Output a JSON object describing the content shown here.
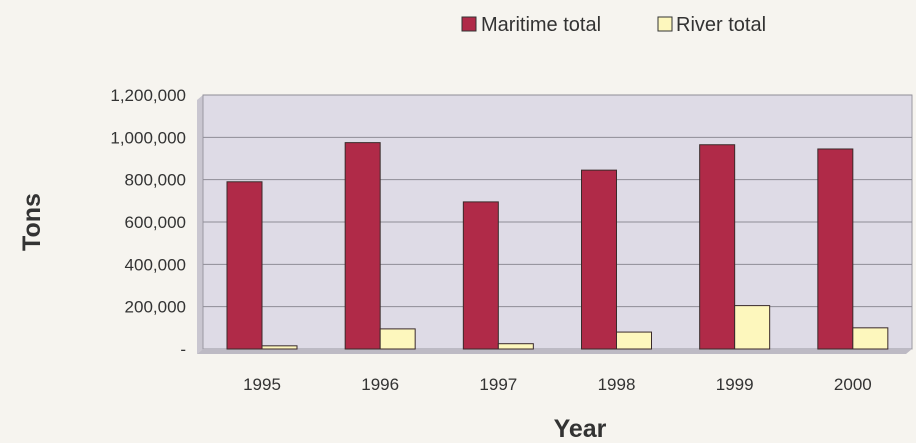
{
  "chart_data": {
    "type": "bar",
    "title": "",
    "xlabel": "Year",
    "ylabel": "Tons",
    "categories": [
      "1995",
      "1996",
      "1997",
      "1998",
      "1999",
      "2000"
    ],
    "series": [
      {
        "name": "Maritime total",
        "color": "#b02a48",
        "values": [
          790000,
          975000,
          695000,
          845000,
          965000,
          945000
        ]
      },
      {
        "name": "River total",
        "color": "#fdf7bd",
        "values": [
          15000,
          95000,
          25000,
          80000,
          205000,
          100000
        ]
      }
    ],
    "ylim": [
      0,
      1200000
    ],
    "yticks": [
      0,
      200000,
      400000,
      600000,
      800000,
      1000000,
      1200000
    ],
    "ytick_labels": [
      "-",
      "200,000",
      "400,000",
      "600,000",
      "800,000",
      "1,000,000",
      "1,200,000"
    ],
    "grid": true,
    "legend_position": "top-right",
    "plot_background": "#dedbe6"
  }
}
